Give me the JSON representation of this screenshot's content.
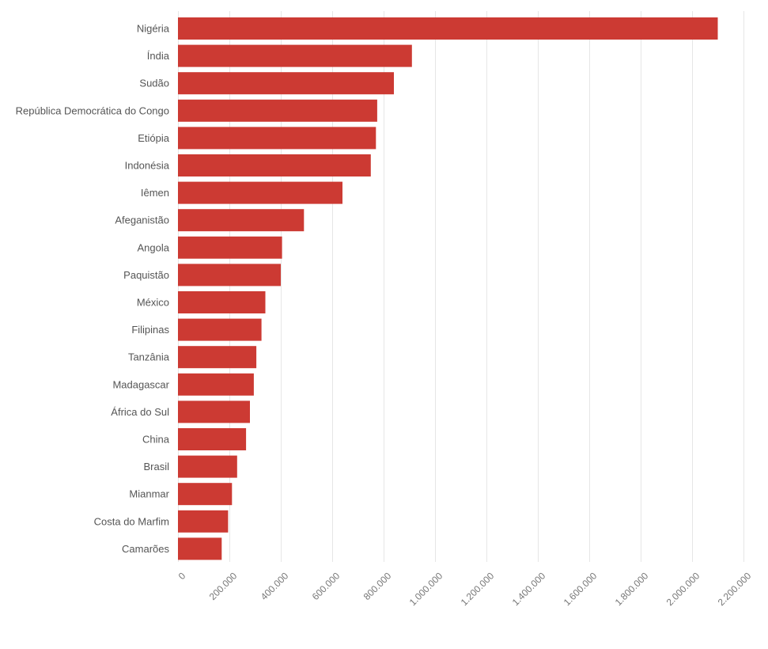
{
  "chart_data": {
    "type": "bar",
    "orientation": "horizontal",
    "title": "",
    "xlabel": "",
    "ylabel": "",
    "bar_color": "#cc3a33",
    "grid_color": "#e6e6e6",
    "grid": true,
    "legend": "none",
    "xlim": [
      0,
      2200000
    ],
    "x_ticks": [
      0,
      200000,
      400000,
      600000,
      800000,
      1000000,
      1200000,
      1400000,
      1600000,
      1800000,
      2000000,
      2200000
    ],
    "x_tick_labels": [
      "0",
      "200.000",
      "400.000",
      "600.000",
      "800.000",
      "1.000.000",
      "1.200.000",
      "1.400.000",
      "1.600.000",
      "1.800.000",
      "2.000.000",
      "2.200.000"
    ],
    "categories": [
      "Nigéria",
      "Índia",
      "Sudão",
      "República Democrática do Congo",
      "Etiópia",
      "Indonésia",
      "Iêmen",
      "Afeganistão",
      "Angola",
      "Paquistão",
      "México",
      "Filipinas",
      "Tanzânia",
      "Madagascar",
      "África do Sul",
      "China",
      "Brasil",
      "Mianmar",
      "Costa do Marfim",
      "Camarões"
    ],
    "values": [
      2100000,
      910000,
      840000,
      775000,
      770000,
      750000,
      640000,
      490000,
      405000,
      400000,
      340000,
      325000,
      305000,
      295000,
      280000,
      265000,
      230000,
      210000,
      195000,
      170000
    ]
  }
}
